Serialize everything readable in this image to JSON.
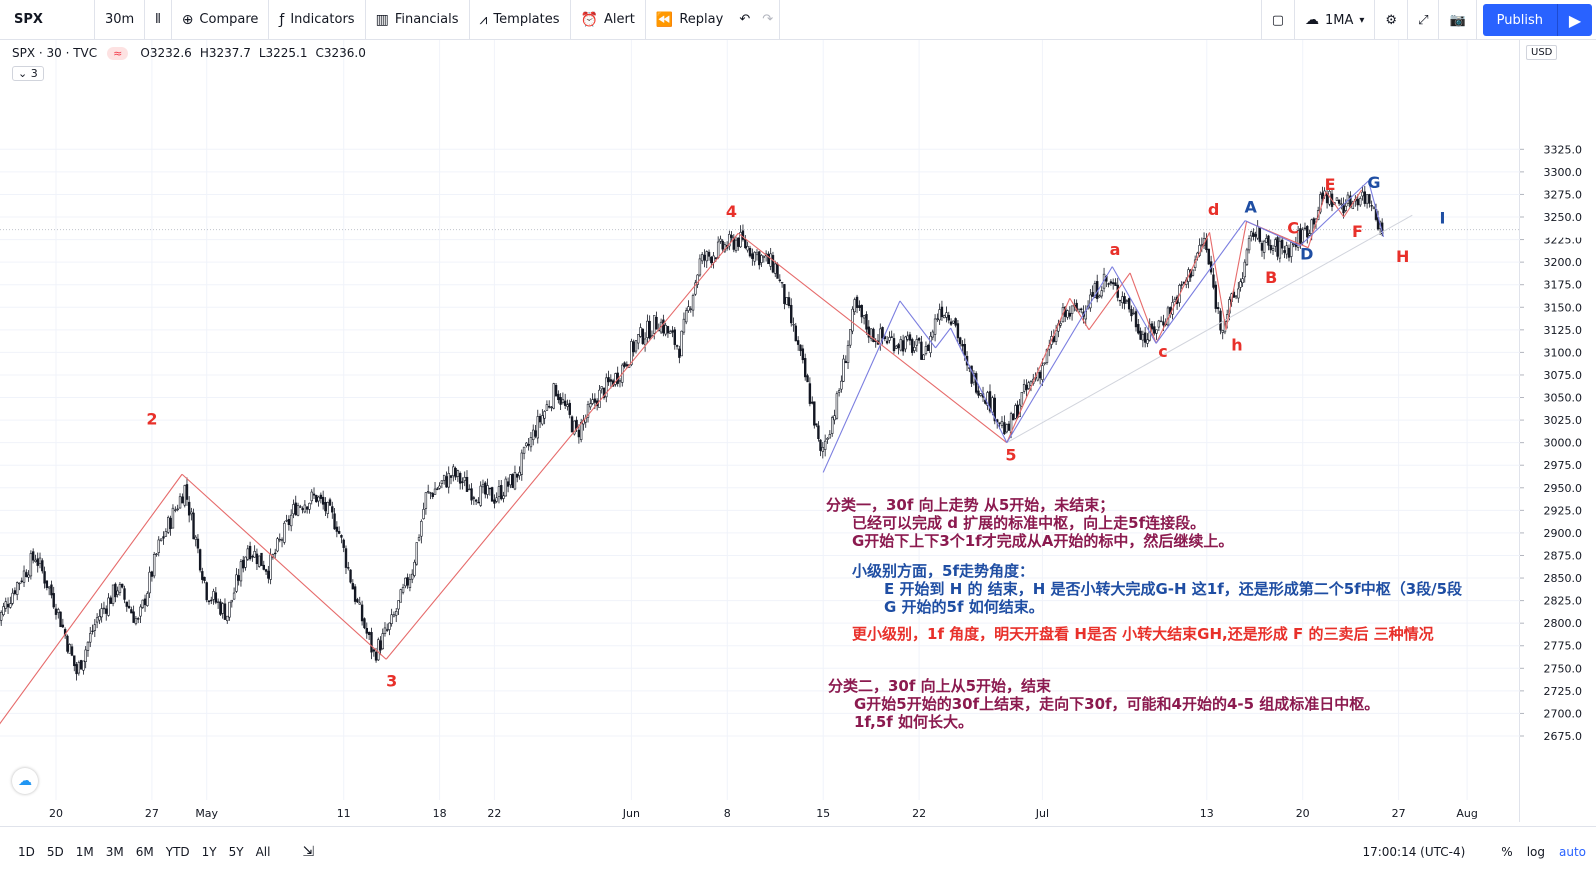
{
  "toolbar": {
    "symbol": "SPX",
    "interval": "30m",
    "compare": "Compare",
    "indicators": "Indicators",
    "financials": "Financials",
    "templates": "Templates",
    "alert": "Alert",
    "replay": "Replay",
    "ma_label": "1MA",
    "publish": "Publish"
  },
  "legend": {
    "symbol_line": "SPX · 30 · TVC",
    "pill": "≈",
    "open": "O3232.6",
    "high": "H3237.7",
    "low": "L3225.1",
    "close": "C3236.0",
    "collapse": "3"
  },
  "price_axis": {
    "currency": "USD"
  },
  "bottom": {
    "ranges": [
      "1D",
      "5D",
      "1M",
      "3M",
      "6M",
      "YTD",
      "1Y",
      "5Y",
      "All"
    ],
    "clock": "17:00:14 (UTC-4)",
    "percent": "%",
    "log": "log",
    "auto": "auto"
  },
  "notes": {
    "n1": "分类一，30f 向上走势 从5开始，未结束；",
    "n2": "已经可以完成 d 扩展的标准中枢，向上走5f连接段。",
    "n3": "G开始下上下3个1f才完成从A开始的标中，然后继续上。",
    "n4": "小级别方面，5f走势角度：",
    "n5": "E 开始到 H 的 结束，H 是否小转大完成G-H 这1f，还是形成第二个5f中枢（3段/5段",
    "n6": "G 开始的5f 如何结束。",
    "n7": "更小级别，1f 角度，明天开盘看 H是否 小转大结束GH,还是形成 F 的三卖后 三种情况",
    "n8": "分类二，30f 向上从5开始，结束",
    "n9": "G开始5开始的30f上结束，走向下30f，可能和4开始的4-5 组成标准日中枢。",
    "n10": "1f,5f 如何长大。"
  },
  "chart_data": {
    "type": "candlestick",
    "title": "",
    "xlabel": "",
    "ylabel": "",
    "ylim": [
      2665,
      3345
    ],
    "yticks": [
      2675,
      2700,
      2725,
      2750,
      2775,
      2800,
      2825,
      2850,
      2875,
      2900,
      2925,
      2950,
      2975,
      3000,
      3025,
      3050,
      3075,
      3100,
      3125,
      3150,
      3175,
      3200,
      3225,
      3250,
      3275,
      3300,
      3325
    ],
    "xticks": [
      {
        "label": "20",
        "day": 20
      },
      {
        "label": "27",
        "day": 27
      },
      {
        "label": "May",
        "day": 31
      },
      {
        "label": "11",
        "day": 41
      },
      {
        "label": "18",
        "day": 48
      },
      {
        "label": "22",
        "day": 52
      },
      {
        "label": "Jun",
        "day": 62
      },
      {
        "label": "8",
        "day": 69
      },
      {
        "label": "15",
        "day": 76
      },
      {
        "label": "22",
        "day": 83
      },
      {
        "label": "Jul",
        "day": 92
      },
      {
        "label": "13",
        "day": 104
      },
      {
        "label": "20",
        "day": 111
      },
      {
        "label": "27",
        "day": 118
      },
      {
        "label": "Aug",
        "day": 123
      }
    ],
    "last_price": 3236.0,
    "price_path": [
      {
        "day": 15.5,
        "price": 2795
      },
      {
        "day": 17,
        "price": 2840
      },
      {
        "day": 18.5,
        "price": 2875
      },
      {
        "day": 20,
        "price": 2820
      },
      {
        "day": 21.5,
        "price": 2745
      },
      {
        "day": 23,
        "price": 2805
      },
      {
        "day": 24.5,
        "price": 2840
      },
      {
        "day": 26,
        "price": 2800
      },
      {
        "day": 27.5,
        "price": 2885
      },
      {
        "day": 29.4,
        "price": 2950
      },
      {
        "day": 31,
        "price": 2835
      },
      {
        "day": 32.5,
        "price": 2810
      },
      {
        "day": 34,
        "price": 2885
      },
      {
        "day": 35.5,
        "price": 2860
      },
      {
        "day": 37.5,
        "price": 2930
      },
      {
        "day": 39,
        "price": 2940
      },
      {
        "day": 40.5,
        "price": 2910
      },
      {
        "day": 42,
        "price": 2820
      },
      {
        "day": 43.2,
        "price": 2765
      },
      {
        "day": 44.5,
        "price": 2800
      },
      {
        "day": 46,
        "price": 2860
      },
      {
        "day": 47,
        "price": 2940
      },
      {
        "day": 49,
        "price": 2965
      },
      {
        "day": 50.5,
        "price": 2945
      },
      {
        "day": 52,
        "price": 2940
      },
      {
        "day": 53.5,
        "price": 2960
      },
      {
        "day": 55,
        "price": 3015
      },
      {
        "day": 56.5,
        "price": 3060
      },
      {
        "day": 58,
        "price": 3010
      },
      {
        "day": 59.5,
        "price": 3050
      },
      {
        "day": 61,
        "price": 3075
      },
      {
        "day": 62.5,
        "price": 3115
      },
      {
        "day": 64,
        "price": 3135
      },
      {
        "day": 65.5,
        "price": 3105
      },
      {
        "day": 67,
        "price": 3200
      },
      {
        "day": 68.5,
        "price": 3215
      },
      {
        "day": 69.8,
        "price": 3225
      },
      {
        "day": 71,
        "price": 3210
      },
      {
        "day": 72.5,
        "price": 3195
      },
      {
        "day": 74,
        "price": 3115
      },
      {
        "day": 75.2,
        "price": 3040
      },
      {
        "day": 75.8,
        "price": 2985
      },
      {
        "day": 77,
        "price": 3045
      },
      {
        "day": 78.3,
        "price": 3150
      },
      {
        "day": 79.5,
        "price": 3120
      },
      {
        "day": 80.5,
        "price": 3115
      },
      {
        "day": 82,
        "price": 3110
      },
      {
        "day": 83.5,
        "price": 3100
      },
      {
        "day": 84.5,
        "price": 3150
      },
      {
        "day": 85.5,
        "price": 3140
      },
      {
        "day": 86.5,
        "price": 3080
      },
      {
        "day": 88,
        "price": 3050
      },
      {
        "day": 89.4,
        "price": 3010
      },
      {
        "day": 90.5,
        "price": 3050
      },
      {
        "day": 92,
        "price": 3085
      },
      {
        "day": 93.5,
        "price": 3140
      },
      {
        "day": 95,
        "price": 3150
      },
      {
        "day": 96.5,
        "price": 3180
      },
      {
        "day": 98,
        "price": 3160
      },
      {
        "day": 99.5,
        "price": 3115
      },
      {
        "day": 101,
        "price": 3140
      },
      {
        "day": 102.5,
        "price": 3180
      },
      {
        "day": 103.8,
        "price": 3225
      },
      {
        "day": 105,
        "price": 3130
      },
      {
        "day": 106.3,
        "price": 3170
      },
      {
        "day": 107.4,
        "price": 3235
      },
      {
        "day": 108.5,
        "price": 3215
      },
      {
        "day": 110,
        "price": 3215
      },
      {
        "day": 111.5,
        "price": 3240
      },
      {
        "day": 112.6,
        "price": 3275
      },
      {
        "day": 113.5,
        "price": 3265
      },
      {
        "day": 114.3,
        "price": 3265
      },
      {
        "day": 115.2,
        "price": 3275
      },
      {
        "day": 116.2,
        "price": 3265
      },
      {
        "day": 116.8,
        "price": 3230
      }
    ],
    "red_segments": [
      {
        "from": {
          "day": 15,
          "price": 2670
        },
        "to": {
          "day": 29.2,
          "price": 2965
        }
      },
      {
        "from": {
          "day": 29.2,
          "price": 2965
        },
        "to": {
          "day": 44.1,
          "price": 2760
        }
      },
      {
        "from": {
          "day": 44.1,
          "price": 2760
        },
        "to": {
          "day": 69.8,
          "price": 3232
        }
      },
      {
        "from": {
          "day": 69.8,
          "price": 3232
        },
        "to": {
          "day": 89.4,
          "price": 3000
        }
      },
      {
        "from": {
          "day": 89.4,
          "price": 3000
        },
        "to": {
          "day": 94,
          "price": 3160
        }
      },
      {
        "from": {
          "day": 94,
          "price": 3160
        },
        "to": {
          "day": 95.4,
          "price": 3125
        }
      },
      {
        "from": {
          "day": 95.4,
          "price": 3125
        },
        "to": {
          "day": 98.4,
          "price": 3188
        }
      },
      {
        "from": {
          "day": 98.4,
          "price": 3188
        },
        "to": {
          "day": 100.3,
          "price": 3110
        }
      },
      {
        "from": {
          "day": 100.3,
          "price": 3110
        },
        "to": {
          "day": 104.2,
          "price": 3233
        }
      },
      {
        "from": {
          "day": 104.2,
          "price": 3233
        },
        "to": {
          "day": 105.4,
          "price": 3125
        }
      },
      {
        "from": {
          "day": 105.4,
          "price": 3125
        },
        "to": {
          "day": 106.9,
          "price": 3245
        }
      },
      {
        "from": {
          "day": 106.9,
          "price": 3245
        },
        "to": {
          "day": 111.4,
          "price": 3216
        }
      },
      {
        "from": {
          "day": 111.4,
          "price": 3216
        },
        "to": {
          "day": 112.7,
          "price": 3278
        }
      },
      {
        "from": {
          "day": 112.7,
          "price": 3278
        },
        "to": {
          "day": 114,
          "price": 3250
        }
      },
      {
        "from": {
          "day": 114,
          "price": 3250
        },
        "to": {
          "day": 115.3,
          "price": 3280
        }
      }
    ],
    "blue_segments": [
      {
        "from": {
          "day": 76,
          "price": 2967
        },
        "to": {
          "day": 81.6,
          "price": 3157
        }
      },
      {
        "from": {
          "day": 81.6,
          "price": 3157
        },
        "to": {
          "day": 84.2,
          "price": 3105
        }
      },
      {
        "from": {
          "day": 84.2,
          "price": 3105
        },
        "to": {
          "day": 85.3,
          "price": 3127
        }
      },
      {
        "from": {
          "day": 85.3,
          "price": 3127
        },
        "to": {
          "day": 89.4,
          "price": 3000
        }
      },
      {
        "from": {
          "day": 89.4,
          "price": 3000
        },
        "to": {
          "day": 97.1,
          "price": 3195
        }
      },
      {
        "from": {
          "day": 97.1,
          "price": 3195
        },
        "to": {
          "day": 100.3,
          "price": 3110
        }
      },
      {
        "from": {
          "day": 100.3,
          "price": 3110
        },
        "to": {
          "day": 106.8,
          "price": 3246
        }
      },
      {
        "from": {
          "day": 106.8,
          "price": 3246
        },
        "to": {
          "day": 110.8,
          "price": 3218
        }
      },
      {
        "from": {
          "day": 110.8,
          "price": 3218
        },
        "to": {
          "day": 115.8,
          "price": 3290
        }
      },
      {
        "from": {
          "day": 115.8,
          "price": 3290
        },
        "to": {
          "day": 116.9,
          "price": 3228
        }
      }
    ],
    "trendline": {
      "from": {
        "day": 89.4,
        "price": 3000
      },
      "to": {
        "day": 119,
        "price": 3252
      }
    },
    "labels": [
      {
        "text": "2",
        "day": 27,
        "price": 3020,
        "color": "#e8302a"
      },
      {
        "text": "3",
        "day": 44.5,
        "price": 2730,
        "color": "#e8302a"
      },
      {
        "text": "4",
        "day": 69.3,
        "price": 3250,
        "color": "#e8302a"
      },
      {
        "text": "5",
        "day": 89.7,
        "price": 2980,
        "color": "#e8302a"
      },
      {
        "text": "a",
        "day": 97.3,
        "price": 3208,
        "color": "#e8302a"
      },
      {
        "text": "c",
        "day": 100.8,
        "price": 3095,
        "color": "#e8302a"
      },
      {
        "text": "d",
        "day": 104.5,
        "price": 3252,
        "color": "#e8302a"
      },
      {
        "text": "h",
        "day": 106.2,
        "price": 3102,
        "color": "#e8302a"
      },
      {
        "text": "A",
        "day": 107.2,
        "price": 3255,
        "color": "#1f4ea3"
      },
      {
        "text": "B",
        "day": 108.7,
        "price": 3177,
        "color": "#e8302a"
      },
      {
        "text": "C",
        "day": 110.3,
        "price": 3232,
        "color": "#e8302a"
      },
      {
        "text": "D",
        "day": 111.3,
        "price": 3203,
        "color": "#1f4ea3"
      },
      {
        "text": "E",
        "day": 113,
        "price": 3280,
        "color": "#e8302a"
      },
      {
        "text": "F",
        "day": 115,
        "price": 3228,
        "color": "#e8302a"
      },
      {
        "text": "G",
        "day": 116.2,
        "price": 3282,
        "color": "#1f4ea3"
      },
      {
        "text": "H",
        "day": 118.3,
        "price": 3200,
        "color": "#e8302a"
      },
      {
        "text": "I",
        "day": 121.2,
        "price": 3243,
        "color": "#1f4ea3"
      }
    ]
  }
}
